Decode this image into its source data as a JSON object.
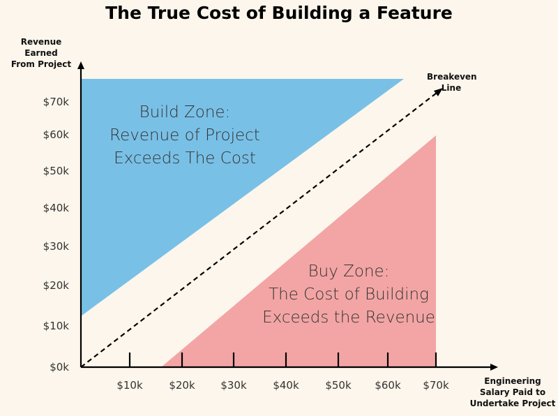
{
  "title": "The True Cost of Building a Feature",
  "y_axis_label": [
    "Revenue Earned",
    "From Project"
  ],
  "x_axis_label": [
    "Engineering",
    "Salary Paid to",
    "Undertake Project"
  ],
  "breakeven_label": [
    "Breakeven",
    "Line"
  ],
  "build_zone_text": [
    "Build Zone:",
    "Revenue of Project",
    "Exceeds The Cost"
  ],
  "buy_zone_text": [
    "Buy Zone:",
    "The Cost of Building",
    "Exceeds the Revenue"
  ],
  "y_ticks": [
    "$0k",
    "$10k",
    "$20k",
    "$30k",
    "$40k",
    "$50k",
    "$60k",
    "$70k"
  ],
  "x_ticks": [
    "$10k",
    "$20k",
    "$30k",
    "$40k",
    "$50k",
    "$60k",
    "$70k"
  ],
  "colors": {
    "background": "#fcf6ec",
    "build_zone": "#79c0e6",
    "buy_zone": "#f2a5a4",
    "axis": "#000000"
  }
}
